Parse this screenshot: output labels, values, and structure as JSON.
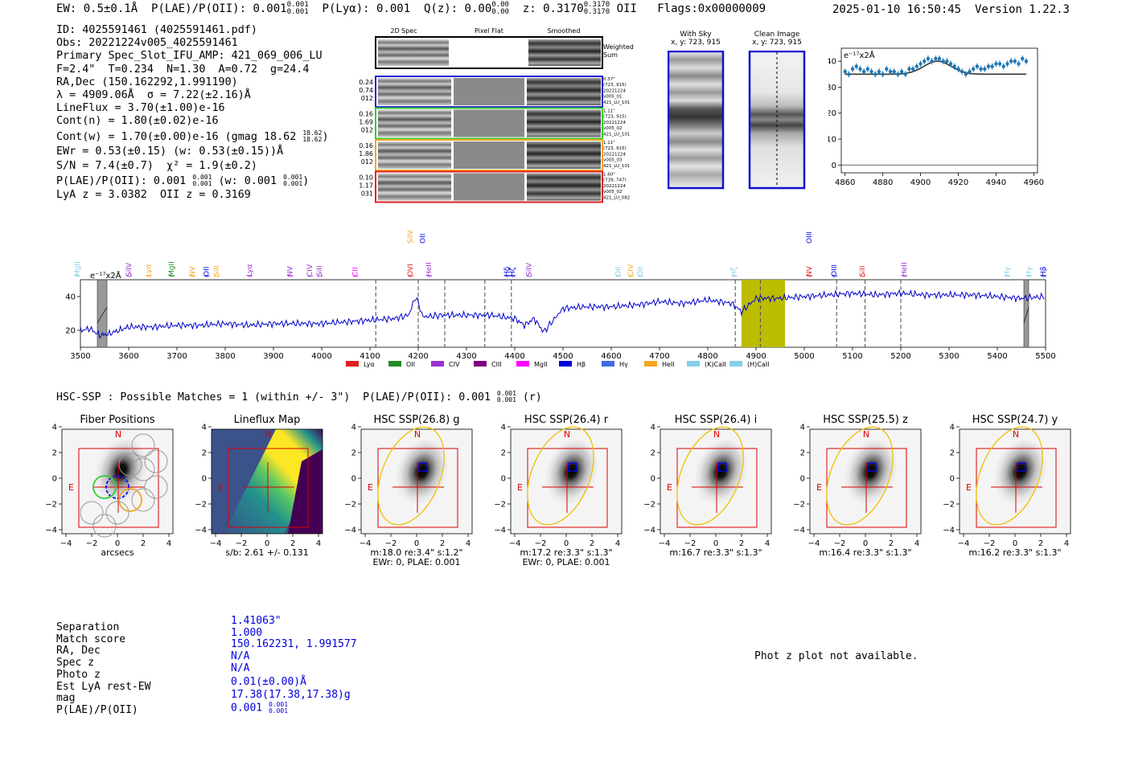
{
  "header": {
    "ew": "EW: 0.5±0.1Å",
    "plae": "P(LAE)/P(OII): 0.001",
    "plae_sup": "0.001",
    "plae_sub": "0.001",
    "plya": "P(Lyα): 0.001",
    "qz": "Q(z): 0.00",
    "qz_sup": "0.00",
    "qz_sub": "0.00",
    "z": "z: 0.3170",
    "z_sup": "0.3170",
    "z_sub": "0.3170",
    "z_line": "OII",
    "flags": "Flags:0x00000009",
    "datetime": "2025-01-10 16:50:45",
    "version": "Version 1.22.3"
  },
  "info": {
    "lines": [
      "ID: 4025591461 (4025591461.pdf)",
      "Obs: 20221224v005_4025591461",
      "Primary Spec_Slot_IFU_AMP: 421_069_006_LU",
      "F=2.4\"  T=0.234  N=1.30  A=0.72  g=24.4",
      "RA,Dec (150.162292,1.991190)",
      "λ = 4909.06Å  σ = 7.22(±2.16)Å",
      "LineFlux = 3.70(±1.00)e-16",
      "Cont(n) = 1.80(±0.02)e-16"
    ],
    "contw": "Cont(w) = 1.70(±0.00)e-16 (gmag 18.62",
    "contw_sup": "18.62",
    "contw_sub": "18.62",
    "ewr": "EWr = 0.53(±0.15) (w: 0.53(±0.15))Å",
    "sn": "S/N = 7.4(±0.7)  χ² = 1.9(±0.2)",
    "plae": "P(LAE)/P(OII): 0.001",
    "plae_sup1": "0.001",
    "plae_sub1": "0.001",
    "plae_w": "(w: 0.001",
    "plae_sup2": "0.001",
    "plae_sub2": "0.001",
    "lyaz": "LyA z = 3.0382  OII z = 0.3169"
  },
  "spec2d": {
    "col_labels": [
      "2D Spec",
      "Pixel Flat",
      "Smoothed"
    ],
    "weighted": "Weighted",
    "sum": "Sum",
    "rows": [
      {
        "left": [
          "0.24",
          "0.74",
          "012"
        ],
        "right": [
          "0.37\"",
          "(723, 915)",
          "20221224",
          "v005_01",
          "421_LU_101"
        ],
        "color": "#1f1fd6"
      },
      {
        "left": [
          "0.16",
          "1.69",
          "012"
        ],
        "right": [
          "1.11\"",
          "(723, 915)",
          "20221224",
          "v005_02",
          "421_LU_101"
        ],
        "color": "#33cc33"
      },
      {
        "left": [
          "0.16",
          "1.86",
          "012"
        ],
        "right": [
          "1.11\"",
          "(723, 915)",
          "20221224",
          "v005_03",
          "421_LU_101"
        ],
        "color": "#f5a623"
      },
      {
        "left": [
          "0.10",
          "1.17",
          "031"
        ],
        "right": [
          "1.60\"",
          "(739, 747)",
          "20221224",
          "v005_02",
          "421_LU_082"
        ],
        "color": "#e02020"
      }
    ]
  },
  "stamps": {
    "with_sky": "With Sky",
    "with_sky_xy": "x, y: 723, 915",
    "clean": "Clean Image",
    "clean_xy": "x, y: 723, 915"
  },
  "zoom_chart": {
    "units": "e⁻¹⁷x2Å"
  },
  "spectrum": {
    "units": "e⁻¹⁷x2Å",
    "line_labels": [
      {
        "t": "MgII",
        "w": 3493,
        "c": "#87ceeb"
      },
      {
        "t": "SiIV",
        "w": 3600,
        "c": "#9933cc"
      },
      {
        "t": "Lyα",
        "w": 3641,
        "c": "#f5a623"
      },
      {
        "t": "MgII",
        "w": 3688,
        "c": "#228b22"
      },
      {
        "t": "NV",
        "w": 3732,
        "c": "#f5a623"
      },
      {
        "t": "OII",
        "w": 3761,
        "c": "#0000dd"
      },
      {
        "t": "SiII",
        "w": 3782,
        "c": "#f5a623"
      },
      {
        "t": "Lyα",
        "w": 3850,
        "c": "#9933cc"
      },
      {
        "t": "NV",
        "w": 3934,
        "c": "#9933cc"
      },
      {
        "t": "CIV",
        "w": 3975,
        "c": "#9933cc"
      },
      {
        "t": "SiII",
        "w": 3995,
        "c": "#9933cc"
      },
      {
        "t": "CII",
        "w": 4069,
        "c": "#ff00ff"
      },
      {
        "t": "OVI",
        "w": 4183,
        "c": "#e02020"
      },
      {
        "t": "HeII",
        "w": 4222,
        "c": "#9933cc"
      },
      {
        "t": "Hδ",
        "w": 4383,
        "c": "#0000dd"
      },
      {
        "t": "Hζ",
        "w": 4395,
        "c": "#0000dd"
      },
      {
        "t": "SiIV",
        "w": 4429,
        "c": "#9933cc"
      },
      {
        "t": "OII",
        "w": 4614,
        "c": "#87ceeb"
      },
      {
        "t": "CIV",
        "w": 4640,
        "c": "#f5a623"
      },
      {
        "t": "OII",
        "w": 4660,
        "c": "#87ceeb"
      },
      {
        "t": "Hζ",
        "w": 4854,
        "c": "#87ceeb"
      },
      {
        "t": "NV",
        "w": 5010,
        "c": "#e02020"
      },
      {
        "t": "OIII",
        "w": 5062,
        "c": "#0000dd"
      },
      {
        "t": "SiII",
        "w": 5120,
        "c": "#e02020"
      },
      {
        "t": "HeII",
        "w": 5207,
        "c": "#9933cc"
      },
      {
        "t": "Hγ",
        "w": 5420,
        "c": "#87ceeb"
      },
      {
        "t": "Hγ",
        "w": 5465,
        "c": "#87ceeb"
      },
      {
        "t": "Hβ",
        "w": 5495,
        "c": "#0000dd"
      }
    ],
    "top_labels": [
      {
        "t": "SiIV",
        "w": 4183,
        "c": "#f5a623"
      },
      {
        "t": "OII",
        "w": 4209,
        "c": "#0000dd"
      },
      {
        "t": "OIII",
        "w": 5010,
        "c": "#0000dd"
      }
    ],
    "legend": [
      {
        "t": "Lyα",
        "c": "#e02020"
      },
      {
        "t": "OII",
        "c": "#228b22"
      },
      {
        "t": "CIV",
        "c": "#9933cc"
      },
      {
        "t": "CIII",
        "c": "#800080"
      },
      {
        "t": "MgII",
        "c": "#ff00ff"
      },
      {
        "t": "Hβ",
        "c": "#0000dd"
      },
      {
        "t": "Hγ",
        "c": "#4169e1"
      },
      {
        "t": "HeII",
        "c": "#f5a623"
      },
      {
        "t": "(K)CaII",
        "c": "#87ceeb"
      },
      {
        "t": "(H)CaII",
        "c": "#87ceeb"
      }
    ]
  },
  "hsc": {
    "line": "HSC-SSP : Possible Matches = 1 (within +/- 3\")  P(LAE)/P(OII): 0.001",
    "sup": "0.001",
    "sub": "0.001",
    "band": "(r)"
  },
  "cutouts": [
    {
      "title": "Fiber Positions",
      "cap1": "arcsecs",
      "cap2": ""
    },
    {
      "title": "Lineflux Map",
      "cap1": "s/b: 2.61 +/- 0.131",
      "cap2": ""
    },
    {
      "title": "HSC SSP(26.8) g",
      "cap1": "m:18.0  re:3.4\"  s:1.2\"",
      "cap2": "EWr: 0, PLAE: 0.001"
    },
    {
      "title": "HSC SSP(26.4) r",
      "cap1": "m:17.2  re:3.3\"  s:1.3\"",
      "cap2": "EWr: 0, PLAE: 0.001"
    },
    {
      "title": "HSC SSP(26.4) i",
      "cap1": "m:16.7  re:3.3\"  s:1.3\"",
      "cap2": ""
    },
    {
      "title": "HSC SSP(25.5) z",
      "cap1": "m:16.4  re:3.3\"  s:1.3\"",
      "cap2": ""
    },
    {
      "title": "HSC SSP(24.7) y",
      "cap1": "m:16.2  re:3.3\"  s:1.3\"",
      "cap2": ""
    }
  ],
  "cutout_marks": {
    "north": "N",
    "east": "E"
  },
  "match_table": {
    "rows": [
      {
        "k": "Separation",
        "v": "1.41063\""
      },
      {
        "k": "Match score",
        "v": "1.000"
      },
      {
        "k": "RA, Dec",
        "v": "150.162231, 1.991577"
      },
      {
        "k": "Spec z",
        "v": "N/A"
      },
      {
        "k": "Photo z",
        "v": "N/A"
      },
      {
        "k": "Est LyA rest-EW",
        "v": "0.01(±0.00)Å"
      },
      {
        "k": "mag",
        "v": "17.38(17.38,17.38)g"
      }
    ],
    "plae_k": "P(LAE)/P(OII)",
    "plae_v": "0.001",
    "plae_sup": "0.001",
    "plae_sub": "0.001"
  },
  "photz_msg": "Phot z plot not available.",
  "chart_data": [
    {
      "type": "line",
      "title": "",
      "ylabel": "e-17x2Å",
      "xlim": [
        3500,
        5500
      ],
      "ylim": [
        10,
        50
      ],
      "xticks": [
        3500,
        3600,
        3700,
        3800,
        3900,
        4000,
        4100,
        4200,
        4300,
        4400,
        4500,
        4600,
        4700,
        4800,
        4900,
        5000,
        5100,
        5200,
        5300,
        5400,
        5500
      ],
      "yticks": [
        20,
        40
      ],
      "x": [
        3500,
        3520,
        3540,
        3560,
        3580,
        3600,
        3650,
        3700,
        3750,
        3800,
        3850,
        3900,
        3950,
        4000,
        4050,
        4100,
        4150,
        4180,
        4195,
        4210,
        4250,
        4300,
        4350,
        4400,
        4420,
        4440,
        4460,
        4500,
        4550,
        4600,
        4650,
        4700,
        4750,
        4800,
        4850,
        4870,
        4900,
        4950,
        5000,
        5050,
        5100,
        5150,
        5200,
        5250,
        5300,
        5350,
        5400,
        5450,
        5500
      ],
      "y": [
        20,
        21,
        17,
        18,
        20,
        22,
        22,
        23,
        23,
        24,
        23,
        24,
        24,
        24,
        25,
        26,
        27,
        29,
        40,
        28,
        29,
        29,
        29,
        27,
        23,
        27,
        19,
        33,
        34,
        34,
        35,
        37,
        36,
        38,
        36,
        31,
        39,
        39,
        40,
        41,
        42,
        41,
        42,
        41,
        41,
        41,
        40,
        39,
        40
      ],
      "vlines_dashed": [
        4112,
        4200,
        4255,
        4338,
        4393,
        4857,
        4909,
        5067,
        5126,
        5200
      ],
      "shaded_bands": [
        [
          4870,
          4960
        ]
      ],
      "masked": [
        [
          3535,
          3555
        ],
        [
          5455,
          5465
        ]
      ]
    },
    {
      "type": "scatter",
      "title": "",
      "ylabel": "e-17x2Å",
      "xlim": [
        4858,
        4962
      ],
      "ylim": [
        -3,
        45
      ],
      "xticks": [
        4860,
        4880,
        4900,
        4920,
        4940,
        4960
      ],
      "yticks": [
        0,
        10,
        20,
        30,
        40
      ],
      "x": [
        4860,
        4862,
        4864,
        4866,
        4868,
        4870,
        4872,
        4874,
        4876,
        4878,
        4880,
        4882,
        4884,
        4886,
        4888,
        4890,
        4892,
        4894,
        4896,
        4898,
        4900,
        4902,
        4904,
        4906,
        4908,
        4910,
        4912,
        4914,
        4916,
        4918,
        4920,
        4922,
        4924,
        4926,
        4928,
        4930,
        4932,
        4934,
        4936,
        4938,
        4940,
        4942,
        4944,
        4946,
        4948,
        4950,
        4952,
        4954,
        4956
      ],
      "y": [
        36,
        35,
        37,
        38,
        37,
        36,
        37,
        36,
        35,
        36,
        35,
        37,
        36,
        36,
        35,
        36,
        35,
        37,
        37,
        38,
        39,
        40,
        41,
        40,
        41,
        41,
        40,
        40,
        39,
        38,
        37,
        36,
        35,
        36,
        37,
        38,
        37,
        37,
        38,
        38,
        39,
        39,
        38,
        39,
        40,
        40,
        39,
        41,
        40
      ],
      "model": {
        "baseline": 35,
        "center": 4909,
        "sigma": 7.22,
        "amplitude": 5
      }
    }
  ]
}
